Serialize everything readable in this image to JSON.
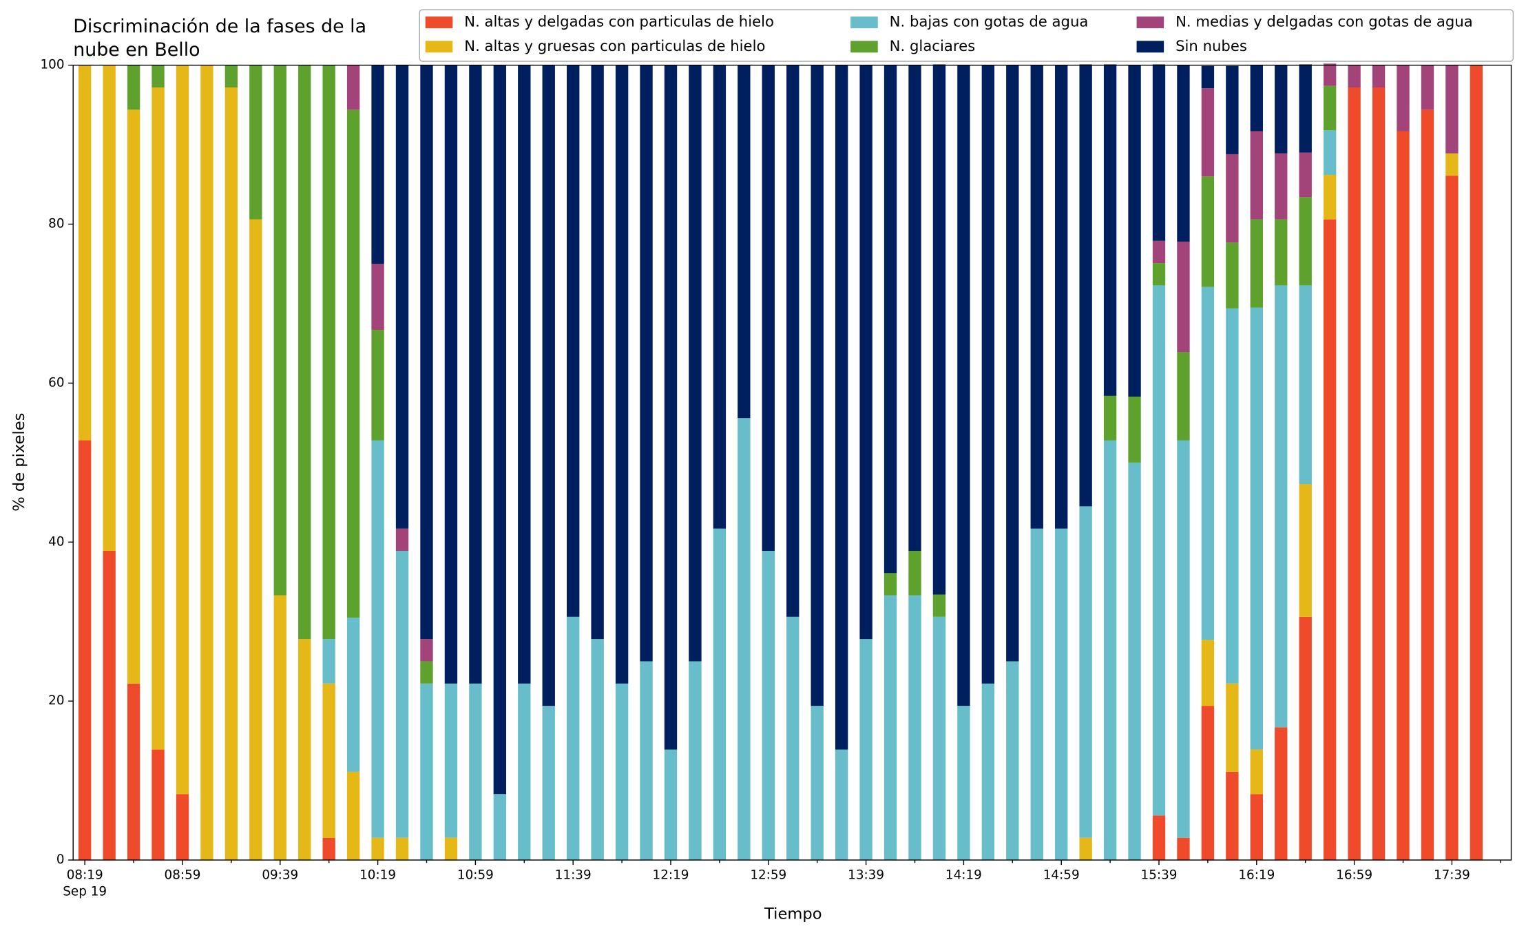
{
  "chart_data": {
    "type": "stacked_bar",
    "title": [
      "Discriminación de la fases de la",
      "nube en Bello"
    ],
    "x_label": "Tiempo",
    "y_label": "% de pixeles",
    "x_sublabel": "Sep 19",
    "categories": [
      "08:19",
      null,
      null,
      null,
      "08:59",
      null,
      null,
      null,
      "09:39",
      null,
      null,
      null,
      "10:19",
      null,
      null,
      null,
      "10:59",
      null,
      null,
      null,
      "11:39",
      null,
      null,
      null,
      "12:19",
      null,
      null,
      null,
      "12:59",
      null,
      null,
      null,
      "13:39",
      null,
      null,
      null,
      "14:19",
      null,
      null,
      null,
      "14:59",
      null,
      null,
      null,
      "15:39",
      null,
      null,
      null,
      "16:19",
      null,
      null,
      null,
      "16:59",
      null,
      null,
      null,
      "17:39",
      null
    ],
    "ylim": [
      0,
      100
    ],
    "yticks": [
      0,
      20,
      40,
      60,
      80,
      100
    ],
    "series": [
      {
        "name": "N. altas y delgadas con particulas de hielo",
        "color": "#ef4b2a",
        "values": [
          52.8,
          38.9,
          22.2,
          13.9,
          8.3,
          0,
          0,
          0,
          0,
          0,
          2.8,
          0,
          0,
          0,
          0,
          0,
          0,
          0,
          0,
          0,
          0,
          0,
          0,
          0,
          0,
          0,
          0,
          0,
          0,
          0,
          0,
          0,
          0,
          0,
          0,
          0,
          0,
          0,
          0,
          0,
          0,
          0,
          0,
          0,
          5.6,
          2.8,
          19.4,
          11.1,
          8.3,
          16.7,
          30.6,
          80.6,
          97.2,
          97.2,
          91.7,
          94.4,
          86.1,
          100
        ]
      },
      {
        "name": "N. altas y gruesas con particulas de hielo",
        "color": "#e6b817",
        "values": [
          47.2,
          61.1,
          72.2,
          83.3,
          91.7,
          100,
          97.2,
          80.6,
          33.3,
          27.8,
          19.4,
          11.1,
          2.8,
          2.8,
          0,
          2.8,
          0,
          0,
          0,
          0,
          0,
          0,
          0,
          0,
          0,
          0,
          0,
          0,
          0,
          0,
          0,
          0,
          0,
          0,
          0,
          0,
          0,
          0,
          0,
          0,
          0,
          2.8,
          0,
          0,
          0,
          0,
          8.3,
          11.1,
          5.6,
          0,
          16.7,
          5.6,
          0,
          0,
          0,
          0,
          2.8,
          0
        ]
      },
      {
        "name": "N. bajas con gotas de agua",
        "color": "#67bdca",
        "values": [
          0,
          0,
          0,
          0,
          0,
          0,
          0,
          0,
          0,
          0,
          5.6,
          19.4,
          50,
          36.1,
          22.2,
          19.4,
          22.2,
          8.3,
          22.2,
          19.4,
          30.6,
          27.8,
          22.2,
          25,
          13.9,
          25,
          41.7,
          55.6,
          38.9,
          30.6,
          19.4,
          13.9,
          27.8,
          33.3,
          33.3,
          30.6,
          19.4,
          22.2,
          25,
          41.7,
          41.7,
          41.7,
          52.8,
          50,
          66.7,
          50,
          44.4,
          47.2,
          55.6,
          55.6,
          25,
          5.6,
          0,
          0,
          0,
          0,
          0,
          0
        ]
      },
      {
        "name": "N. glaciares",
        "color": "#5fa12d",
        "values": [
          0,
          0,
          5.6,
          2.8,
          0,
          0,
          2.8,
          19.4,
          66.7,
          72.2,
          72.2,
          63.9,
          13.9,
          0,
          2.8,
          0,
          0,
          0,
          0,
          0,
          0,
          0,
          0,
          0,
          0,
          0,
          0,
          0,
          0,
          0,
          0,
          0,
          0,
          2.8,
          5.6,
          2.8,
          0,
          0,
          0,
          0,
          0,
          0,
          5.6,
          8.3,
          2.8,
          11.1,
          13.9,
          8.3,
          11.1,
          8.3,
          11.1,
          5.6,
          0,
          0,
          0,
          0,
          0,
          0
        ]
      },
      {
        "name": "N. medias y delgadas con gotas de agua",
        "color": "#a2437a",
        "values": [
          0,
          0,
          0,
          0,
          0,
          0,
          0,
          0,
          0,
          0,
          0,
          5.6,
          8.3,
          2.8,
          2.8,
          0,
          0,
          0,
          0,
          0,
          0,
          0,
          0,
          0,
          0,
          0,
          0,
          0,
          0,
          0,
          0,
          0,
          0,
          0,
          0,
          0,
          0,
          0,
          0,
          0,
          0,
          0,
          0,
          0,
          2.8,
          13.9,
          11.1,
          11.1,
          11.1,
          8.3,
          5.6,
          2.8,
          2.8,
          2.8,
          8.3,
          5.6,
          11.1,
          0
        ]
      },
      {
        "name": "Sin nubes",
        "color": "#001f5e",
        "values": [
          0,
          0,
          0,
          0,
          0,
          0,
          0,
          0,
          0,
          0,
          0,
          0,
          25,
          58.3,
          72.2,
          77.8,
          77.8,
          91.7,
          77.8,
          80.6,
          69.4,
          72.2,
          77.8,
          75,
          86.1,
          75,
          58.3,
          44.4,
          61.1,
          69.4,
          80.6,
          86.1,
          72.2,
          63.9,
          61.1,
          66.7,
          80.6,
          77.8,
          75,
          58.3,
          58.3,
          55.6,
          41.7,
          41.7,
          22.2,
          22.2,
          2.8,
          11.1,
          8.3,
          11.1,
          11.1,
          0,
          0,
          0,
          0,
          0,
          0,
          0
        ]
      }
    ]
  }
}
